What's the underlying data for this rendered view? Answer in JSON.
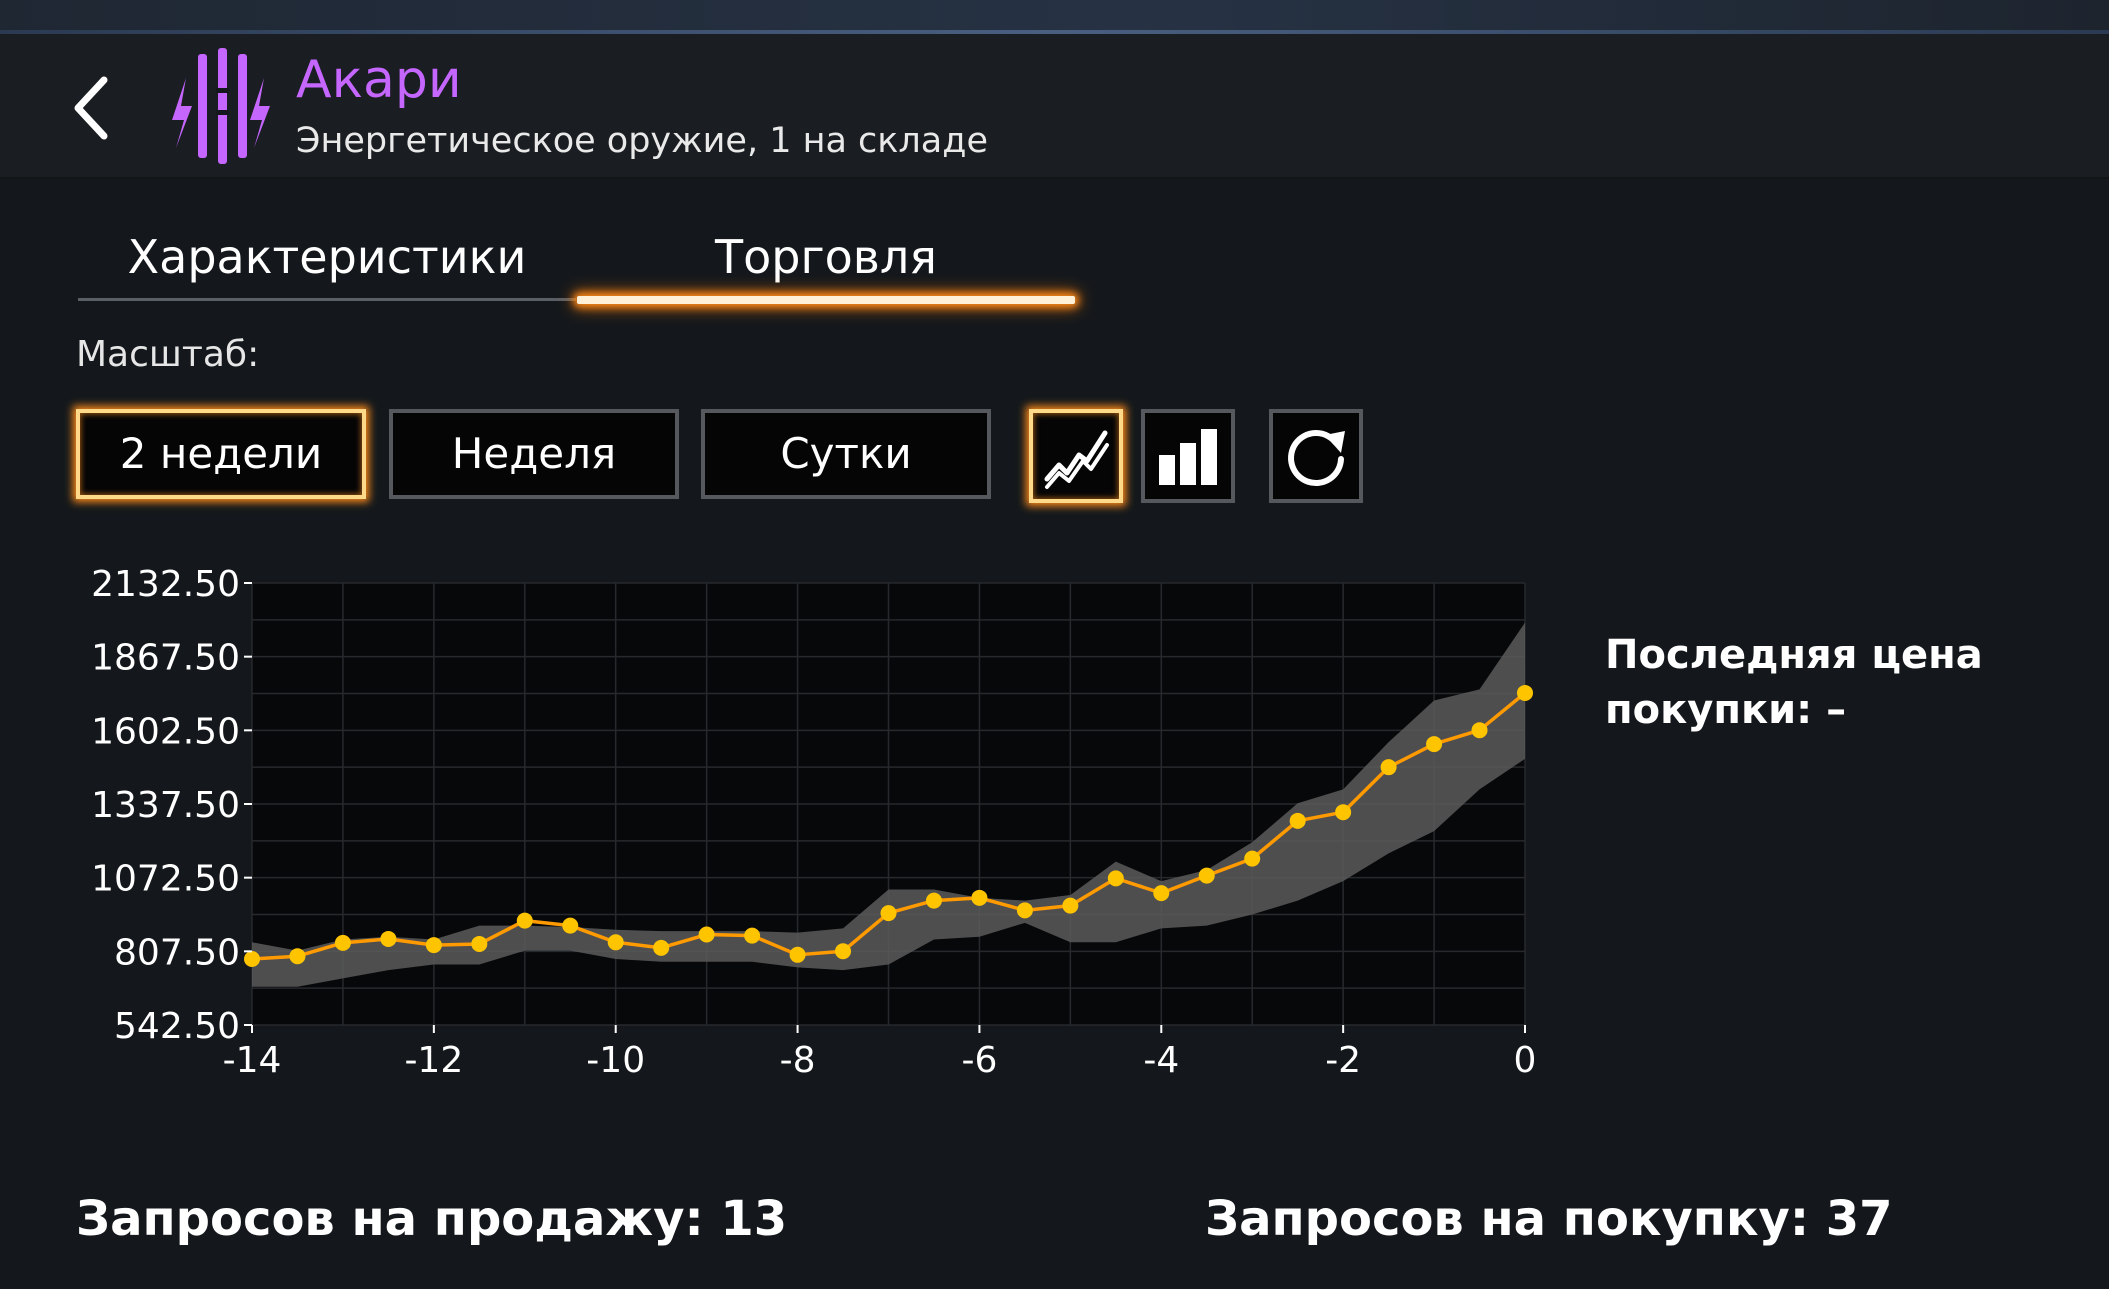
{
  "header": {
    "item_name": "Акари",
    "item_subtitle": "Энергетическое оружие, 1 на складе",
    "item_icon": "energy-weapon-icon",
    "accent_color": "#c566ff"
  },
  "tabs": [
    {
      "label": "Характеристики",
      "active": false
    },
    {
      "label": "Торговля",
      "active": true
    }
  ],
  "scale": {
    "label": "Масштаб:",
    "ranges": [
      {
        "label": "2 недели",
        "active": true
      },
      {
        "label": "Неделя",
        "active": false
      },
      {
        "label": "Сутки",
        "active": false
      }
    ],
    "chart_modes": [
      {
        "icon": "line-chart-icon",
        "active": true
      },
      {
        "icon": "bar-chart-icon",
        "active": false
      }
    ],
    "refresh_icon": "refresh-icon",
    "highlight_color": "#ff8c1a"
  },
  "chart_data": {
    "type": "line",
    "x": [
      -14,
      -13.5,
      -13,
      -12.5,
      -12,
      -11.5,
      -11,
      -10.5,
      -10,
      -9.5,
      -9,
      -8.5,
      -8,
      -7.5,
      -7,
      -6.5,
      -6,
      -5.5,
      -5,
      -4.5,
      -4,
      -3.5,
      -3,
      -2.5,
      -2,
      -1.5,
      -1,
      -0.5,
      0
    ],
    "series": [
      {
        "values": [
          780,
          790,
          838,
          852,
          830,
          834,
          918,
          900,
          840,
          820,
          868,
          864,
          795,
          808,
          945,
          990,
          1000,
          955,
          972,
          1070,
          1017,
          1080,
          1141,
          1277,
          1308,
          1470,
          1553,
          1603,
          1737
        ],
        "band_low": [
          680,
          680,
          710,
          740,
          760,
          760,
          810,
          810,
          780,
          770,
          770,
          770,
          750,
          740,
          760,
          850,
          860,
          910,
          840,
          840,
          890,
          900,
          940,
          990,
          1060,
          1160,
          1240,
          1390,
          1500
        ],
        "band_high": [
          840,
          810,
          850,
          860,
          850,
          900,
          900,
          895,
          885,
          880,
          880,
          880,
          875,
          890,
          1030,
          1030,
          1000,
          990,
          1010,
          1130,
          1060,
          1100,
          1200,
          1340,
          1390,
          1560,
          1710,
          1750,
          1990
        ],
        "color": "#ffc400",
        "line_color": "#ff9a00",
        "band_color": "#5a5a5a"
      }
    ],
    "x_ticks": [
      "-14",
      "-12",
      "-10",
      "-8",
      "-6",
      "-4",
      "-2",
      "0"
    ],
    "y_ticks": [
      "2132.50",
      "1867.50",
      "1602.50",
      "1337.50",
      "1072.50",
      "807.50",
      "542.50"
    ],
    "xlim": [
      -14,
      0
    ],
    "ylim": [
      542.5,
      2132.5
    ],
    "grid": true,
    "title": "",
    "xlabel": "",
    "ylabel": ""
  },
  "last_price": {
    "label": "Последняя цена покупки: –"
  },
  "orders": {
    "sell_label": "Запросов на продажу: 13",
    "buy_label": "Запросов на покупку: 37"
  }
}
